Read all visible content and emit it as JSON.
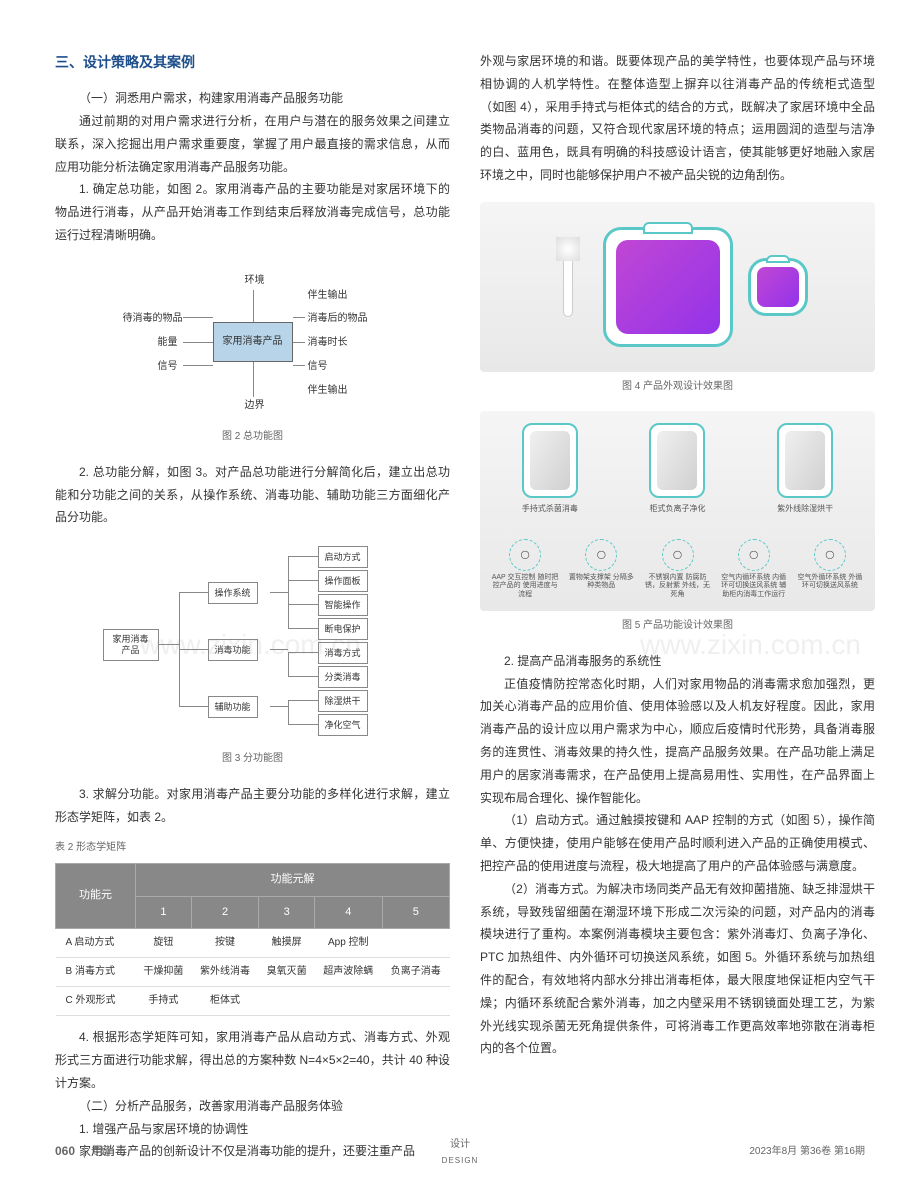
{
  "section_title": "三、设计策略及其案例",
  "left": {
    "sub1_title": "（一）洞悉用户需求，构建家用消毒产品服务功能",
    "p1": "通过前期的对用户需求进行分析，在用户与潜在的服务效果之间建立联系，深入挖掘出用户需求重要度，掌握了用户最直接的需求信息，从而应用功能分析法确定家用消毒产品服务功能。",
    "p2": "1. 确定总功能，如图 2。家用消毒产品的主要功能是对家居环境下的物品进行消毒，从产品开始消毒工作到结束后释放消毒完成信号，总功能运行过程清晰明确。",
    "fig2_caption": "图 2 总功能图",
    "p3": "2. 总功能分解，如图 3。对产品总功能进行分解简化后，建立出总功能和分功能之间的关系，从操作系统、消毒功能、辅助功能三方面细化产品分功能。",
    "fig3_caption": "图 3 分功能图",
    "p4": "3. 求解分功能。对家用消毒产品主要分功能的多样化进行求解，建立形态学矩阵，如表 2。",
    "table2_caption": "表 2 形态学矩阵",
    "p5": "4. 根据形态学矩阵可知，家用消毒产品从启动方式、消毒方式、外观形式三方面进行功能求解，得出总的方案种数 N=4×5×2=40，共计 40 种设计方案。",
    "sub2_title": "（二）分析产品服务，改善家用消毒产品服务体验",
    "p6": "1. 增强产品与家居环境的协调性",
    "p7": "家用消毒产品的创新设计不仅是消毒功能的提升，还要注重产品"
  },
  "diagram2": {
    "center": "家用消毒产品",
    "top": "环境",
    "bottom": "边界",
    "top_out": "伴生输出",
    "bottom_out": "伴生输出",
    "left_items": [
      "待消毒的物品",
      "能量",
      "信号"
    ],
    "right_items": [
      "消毒后的物品",
      "消毒时长",
      "信号"
    ]
  },
  "diagram3": {
    "root": "家用消毒产品",
    "l2": [
      "操作系统",
      "消毒功能",
      "辅助功能"
    ],
    "l3": [
      [
        "启动方式",
        "操作面板",
        "智能操作",
        "断电保护"
      ],
      [
        "消毒方式",
        "分类消毒"
      ],
      [
        "除湿烘干",
        "净化空气"
      ]
    ]
  },
  "table2": {
    "header_main": [
      "功能元",
      "功能元解"
    ],
    "header_sub": [
      "1",
      "2",
      "3",
      "4",
      "5"
    ],
    "rows": [
      [
        "A 启动方式",
        "旋钮",
        "按键",
        "触摸屏",
        "App 控制",
        ""
      ],
      [
        "B 消毒方式",
        "干燥抑菌",
        "紫外线消毒",
        "臭氧灭菌",
        "超声波除螨",
        "负离子消毒"
      ],
      [
        "C 外观形式",
        "手持式",
        "柜体式",
        "",
        "",
        ""
      ]
    ]
  },
  "right": {
    "p1": "外观与家居环境的和谐。既要体现产品的美学特性，也要体现产品与环境相协调的人机学特性。在整体造型上摒弃以往消毒产品的传统柜式造型（如图 4），采用手持式与柜体式的结合的方式，既解决了家居环境中全品类物品消毒的问题，又符合现代家居环境的特点；运用圆润的造型与洁净的白、蓝用色，既具有明确的科技感设计语言，使其能够更好地融入家居环境之中，同时也能够保护用户不被产品尖锐的边角刮伤。",
    "fig4_caption": "图 4 产品外观设计效果图",
    "fig5_caption": "图 5 产品功能设计效果图",
    "p2_title": "2. 提高产品消毒服务的系统性",
    "p2": "正值疫情防控常态化时期，人们对家用物品的消毒需求愈加强烈，更加关心消毒产品的应用价值、使用体验感以及人机友好程度。因此，家用消毒产品的设计应以用户需求为中心，顺应后疫情时代形势，具备消毒服务的连贯性、消毒效果的持久性，提高产品服务效果。在产品功能上满足用户的居家消毒需求，在产品使用上提高易用性、实用性，在产品界面上实现布局合理化、操作智能化。",
    "p3": "（1）启动方式。通过触摸按键和 AAP 控制的方式（如图 5），操作简单、方便快捷，使用户能够在使用产品时顺利进入产品的正确使用模式、把控产品的使用进度与流程，极大地提高了用户的产品体验感与满意度。",
    "p4": "（2）消毒方式。为解决市场同类产品无有效抑菌措施、缺乏排湿烘干系统，导致残留细菌在潮湿环境下形成二次污染的问题，对产品内的消毒模块进行了重构。本案例消毒模块主要包含：紫外消毒灯、负离子净化、PTC 加热组件、内外循环可切换送风系统，如图 5。外循环系统与加热组件的配合，有效地将内部水分排出消毒柜体，最大限度地保证柜内空气干燥；内循环系统配合紫外消毒，加之内壁采用不锈钢镜面处理工艺，为紫外光线实现杀菌无死角提供条件，可将消毒工作更高效率地弥散在消毒柜内的各个位置。"
  },
  "img5_labels": [
    "手持式杀菌消毒",
    "柜式负离子净化",
    "紫外线除湿烘干"
  ],
  "img5_icons": [
    {
      "label": "AAP 交互控制\n随时把控产品的\n使用进度与流程"
    },
    {
      "label": "置物架支撑架\n分隔多种类物品"
    },
    {
      "label": "不锈钢内置\n防腐防锈，反射紫\n外线，无死角"
    },
    {
      "label": "空气内循环系统\n内循环可切换送风系统\n辅助柜内消毒工作运行"
    },
    {
      "label": "空气外循环系统\n外循环可切换送风系统"
    }
  ],
  "footer": {
    "left_page": "060",
    "left_label": "专题",
    "center_top": "设计",
    "center_bottom": "DESIGN",
    "right": "2023年8月 第36卷 第16期"
  },
  "watermark": "www.zixin.com.cn"
}
